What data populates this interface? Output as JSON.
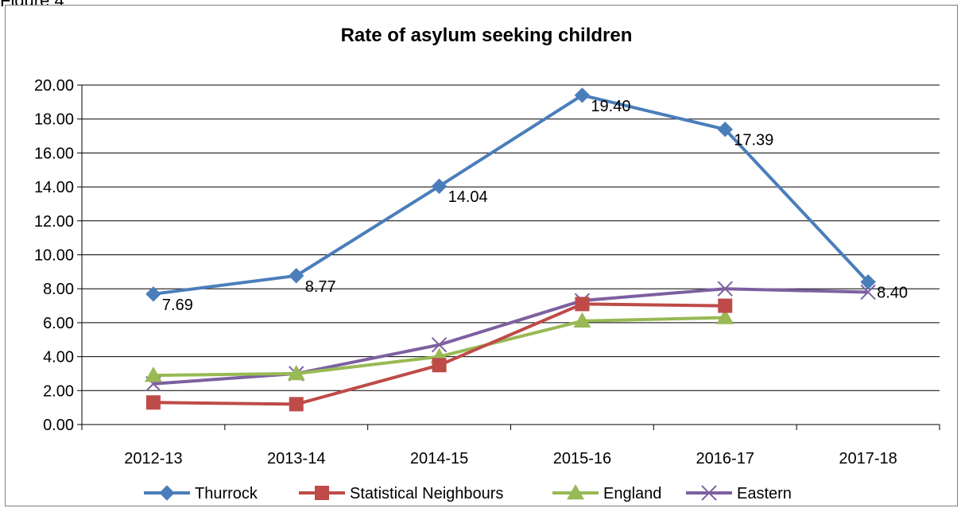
{
  "figure_label": "Figure 4",
  "chart_data": {
    "type": "line",
    "title": "Rate of asylum seeking children",
    "xlabel": "",
    "ylabel": "",
    "categories": [
      "2012-13",
      "2013-14",
      "2014-15",
      "2015-16",
      "2016-17",
      "2017-18"
    ],
    "ylim": [
      0,
      20
    ],
    "yticks": [
      "0.00",
      "2.00",
      "4.00",
      "6.00",
      "8.00",
      "10.00",
      "12.00",
      "14.00",
      "16.00",
      "18.00",
      "20.00"
    ],
    "grid": true,
    "legend_position": "bottom",
    "series": [
      {
        "name": "Thurrock",
        "color": "#4a7ebb",
        "marker": "diamond",
        "values": [
          7.69,
          8.77,
          14.04,
          19.4,
          17.39,
          8.4
        ],
        "data_labels": [
          "7.69",
          "8.77",
          "14.04",
          "19.40",
          "17.39",
          "8.40"
        ]
      },
      {
        "name": "Statistical Neighbours",
        "color": "#be4b48",
        "marker": "square",
        "values": [
          1.3,
          1.2,
          3.5,
          7.1,
          7.0,
          null
        ]
      },
      {
        "name": "England",
        "color": "#98b954",
        "marker": "triangle",
        "values": [
          2.9,
          3.0,
          4.0,
          6.1,
          6.3,
          null
        ]
      },
      {
        "name": "Eastern",
        "color": "#7d60a0",
        "marker": "x",
        "values": [
          2.4,
          3.0,
          4.7,
          7.3,
          8.0,
          7.8
        ]
      }
    ]
  }
}
